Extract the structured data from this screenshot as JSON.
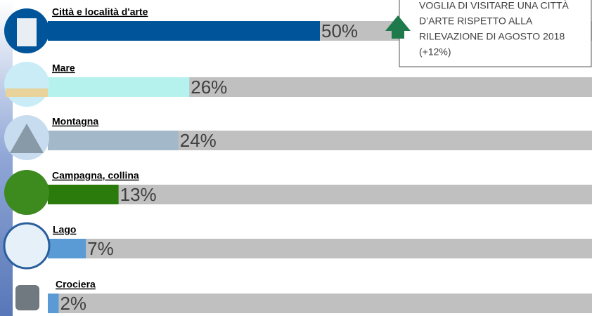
{
  "chart_data": {
    "type": "hbar",
    "categories": [
      "Città e località d'arte",
      "Mare",
      "Montagna",
      "Campagna, collina",
      "Lago",
      "Crociera"
    ],
    "values": [
      50,
      26,
      24,
      13,
      7,
      2
    ],
    "value_labels": [
      "50%",
      "26%",
      "24%",
      "13%",
      "7%",
      "2%"
    ],
    "colors": [
      "#00559a",
      "#b5f2ee",
      "#a3b8c8",
      "#2a7a0c",
      "#5b9bd5",
      "#5b9bd5"
    ],
    "track_color": "#c0c0c0",
    "xlim": [
      0,
      100
    ],
    "annotation": [
      "VOGLIA DI VISITARE UNA CITTÀ",
      "D’ARTE RISPETTO ALLA",
      "RILEVAZIONE DI AGOSTO 2018",
      "(+12%)"
    ]
  }
}
